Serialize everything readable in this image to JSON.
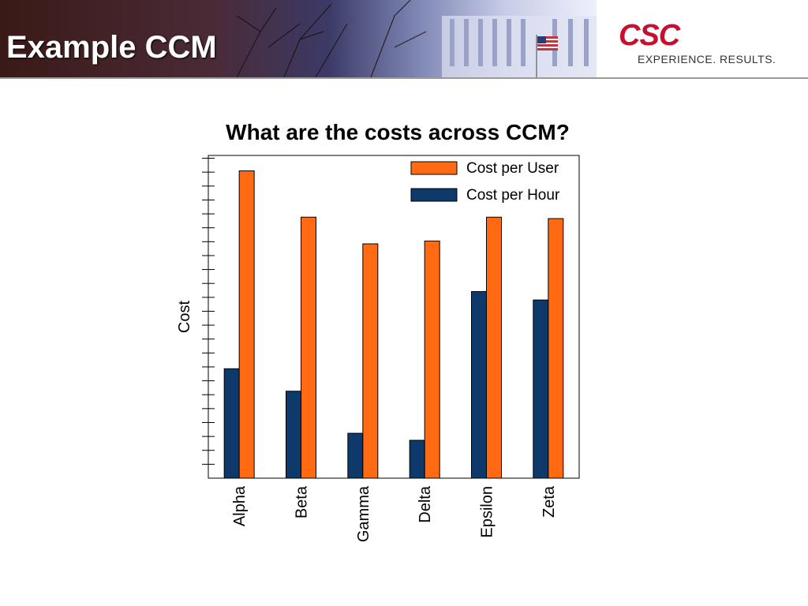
{
  "header": {
    "title": "Example CCM",
    "brand_logo": "CSC",
    "brand_tagline": "EXPERIENCE. RESULTS."
  },
  "colors": {
    "cost_per_user": "#ff6a13",
    "cost_per_hour": "#0e3a6b",
    "brand_red": "#c8102e"
  },
  "chart_data": {
    "type": "bar",
    "title": "What are the costs across CCM?",
    "xlabel": "",
    "ylabel": "Cost",
    "ylim": [
      0,
      23
    ],
    "y_tick_count": 23,
    "grid": false,
    "legend_position": "top-right",
    "categories": [
      "Alpha",
      "Beta",
      "Gamma",
      "Delta",
      "Epsilon",
      "Zeta"
    ],
    "series": [
      {
        "name": "Cost per Hour",
        "color": "#0e3a6b",
        "values": [
          7.8,
          6.2,
          3.2,
          2.7,
          13.3,
          12.7
        ]
      },
      {
        "name": "Cost per User",
        "color": "#ff6a13",
        "values": [
          21.9,
          18.6,
          16.7,
          16.9,
          18.6,
          18.5
        ]
      }
    ]
  }
}
